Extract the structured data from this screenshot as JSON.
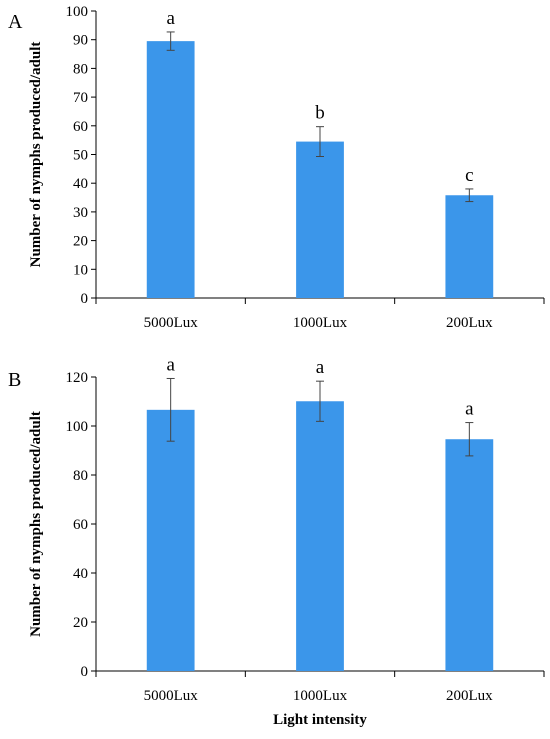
{
  "colors": {
    "bar": "#3b96ea",
    "error_bar": "#444444",
    "axis": "#000000"
  },
  "chart_data": [
    {
      "panel": "A",
      "type": "bar",
      "categories": [
        "5000Lux",
        "1000Lux",
        "200Lux"
      ],
      "values": [
        89.5,
        54.5,
        35.8
      ],
      "errors": [
        3.2,
        5.2,
        2.2
      ],
      "significance": [
        "a",
        "b",
        "c"
      ],
      "ylabel": "Number of nymphs produced/adult",
      "xlabel": "",
      "ylim": [
        0,
        100
      ],
      "yticks": [
        0,
        10,
        20,
        30,
        40,
        50,
        60,
        70,
        80,
        90,
        100
      ],
      "grid": false
    },
    {
      "panel": "B",
      "type": "bar",
      "categories": [
        "5000Lux",
        "1000Lux",
        "200Lux"
      ],
      "values": [
        106.6,
        110.1,
        94.6
      ],
      "errors": [
        12.8,
        8.2,
        6.8
      ],
      "significance": [
        "a",
        "a",
        "a"
      ],
      "ylabel": "Number of nymphs produced/adult",
      "xlabel": "Light intensity",
      "ylim": [
        0,
        120
      ],
      "yticks": [
        0,
        20,
        40,
        60,
        80,
        100,
        120
      ],
      "grid": false
    }
  ]
}
